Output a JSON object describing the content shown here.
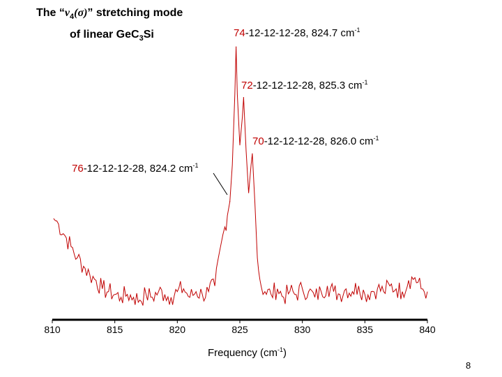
{
  "title": {
    "line1_prefix": "The “",
    "nu_symbol": "ν",
    "nu_subscript": "4",
    "sigma_part": "(σ)",
    "line1_suffix": "” stretching mode",
    "line2_prefix": "of linear  GeC",
    "line2_subscript": "3",
    "line2_suffix": "Si"
  },
  "annotations": [
    {
      "mass": "74",
      "rest": "-12-12-12-28, 824.7 cm",
      "exp": "-1"
    },
    {
      "mass": "72",
      "rest": "-12-12-12-28, 825.3 cm",
      "exp": "-1"
    },
    {
      "mass": "70",
      "rest": "-12-12-12-28, 826.0 cm",
      "exp": "-1"
    },
    {
      "mass": "76",
      "rest": "-12-12-12-28, 824.2 cm",
      "exp": "-1"
    }
  ],
  "xlabel": {
    "text": "Frequency (cm",
    "exp": "-1",
    "close": ")"
  },
  "page_number": "8",
  "colors": {
    "trace": "#c00000",
    "mass_label": "#c00000",
    "axis": "#000000"
  },
  "chart_data": {
    "type": "line",
    "xlim": [
      810,
      840
    ],
    "ylim": [
      0,
      1
    ],
    "grid": false,
    "x_ticks": [
      "810",
      "815",
      "820",
      "825",
      "830",
      "835",
      "840"
    ],
    "peaks": [
      {
        "x": 824.2,
        "y": 0.42
      },
      {
        "x": 824.7,
        "y": 0.97
      },
      {
        "x": 825.3,
        "y": 0.79
      },
      {
        "x": 826.0,
        "y": 0.59
      }
    ],
    "x": [
      810.1,
      810.5,
      811.0,
      811.5,
      812.0,
      812.5,
      813.0,
      813.5,
      814.0,
      814.5,
      815.0,
      815.5,
      816.0,
      816.5,
      817.0,
      817.5,
      818.0,
      818.5,
      819.0,
      819.5,
      820.0,
      820.5,
      821.0,
      821.5,
      822.0,
      822.5,
      823.0,
      823.5,
      823.8,
      824.0,
      824.2,
      824.4,
      824.6,
      824.7,
      824.8,
      825.0,
      825.2,
      825.3,
      825.5,
      825.7,
      825.9,
      826.0,
      826.2,
      826.4,
      826.7,
      827.0,
      827.5,
      828.0,
      828.5,
      829.0,
      829.5,
      830.0,
      830.5,
      831.0,
      831.5,
      832.0,
      832.5,
      833.0,
      833.5,
      834.0,
      834.5,
      835.0,
      835.5,
      836.0,
      836.5,
      837.0,
      837.5,
      838.0,
      838.5,
      839.0,
      839.5,
      840.0
    ],
    "y": [
      0.36,
      0.34,
      0.3,
      0.26,
      0.22,
      0.19,
      0.16,
      0.14,
      0.11,
      0.1,
      0.09,
      0.08,
      0.09,
      0.08,
      0.07,
      0.09,
      0.08,
      0.1,
      0.09,
      0.08,
      0.1,
      0.11,
      0.08,
      0.1,
      0.09,
      0.1,
      0.12,
      0.27,
      0.33,
      0.37,
      0.42,
      0.55,
      0.8,
      0.97,
      0.8,
      0.62,
      0.72,
      0.79,
      0.6,
      0.45,
      0.55,
      0.59,
      0.42,
      0.22,
      0.12,
      0.1,
      0.09,
      0.11,
      0.08,
      0.1,
      0.09,
      0.11,
      0.1,
      0.08,
      0.1,
      0.12,
      0.1,
      0.09,
      0.11,
      0.1,
      0.12,
      0.09,
      0.1,
      0.11,
      0.1,
      0.12,
      0.11,
      0.1,
      0.14,
      0.15,
      0.11,
      0.1
    ]
  }
}
